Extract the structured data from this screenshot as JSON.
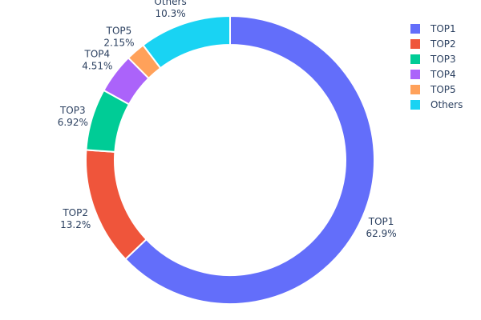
{
  "chart_data": {
    "type": "pie",
    "hole": true,
    "categories": [
      "TOP1",
      "TOP2",
      "TOP3",
      "TOP4",
      "TOP5",
      "Others"
    ],
    "values": [
      62.9,
      13.2,
      6.92,
      4.51,
      2.15,
      10.3
    ],
    "value_labels": [
      "62.9%",
      "13.2%",
      "6.92%",
      "4.51%",
      "2.15%",
      "10.3%"
    ],
    "colors": [
      "#636efa",
      "#ef553b",
      "#00cc96",
      "#ab63fa",
      "#ffa15a",
      "#19d3f3"
    ],
    "legend": {
      "position": "top-right",
      "entries": [
        "TOP1",
        "TOP2",
        "TOP3",
        "TOP4",
        "TOP5",
        "Others"
      ]
    }
  }
}
